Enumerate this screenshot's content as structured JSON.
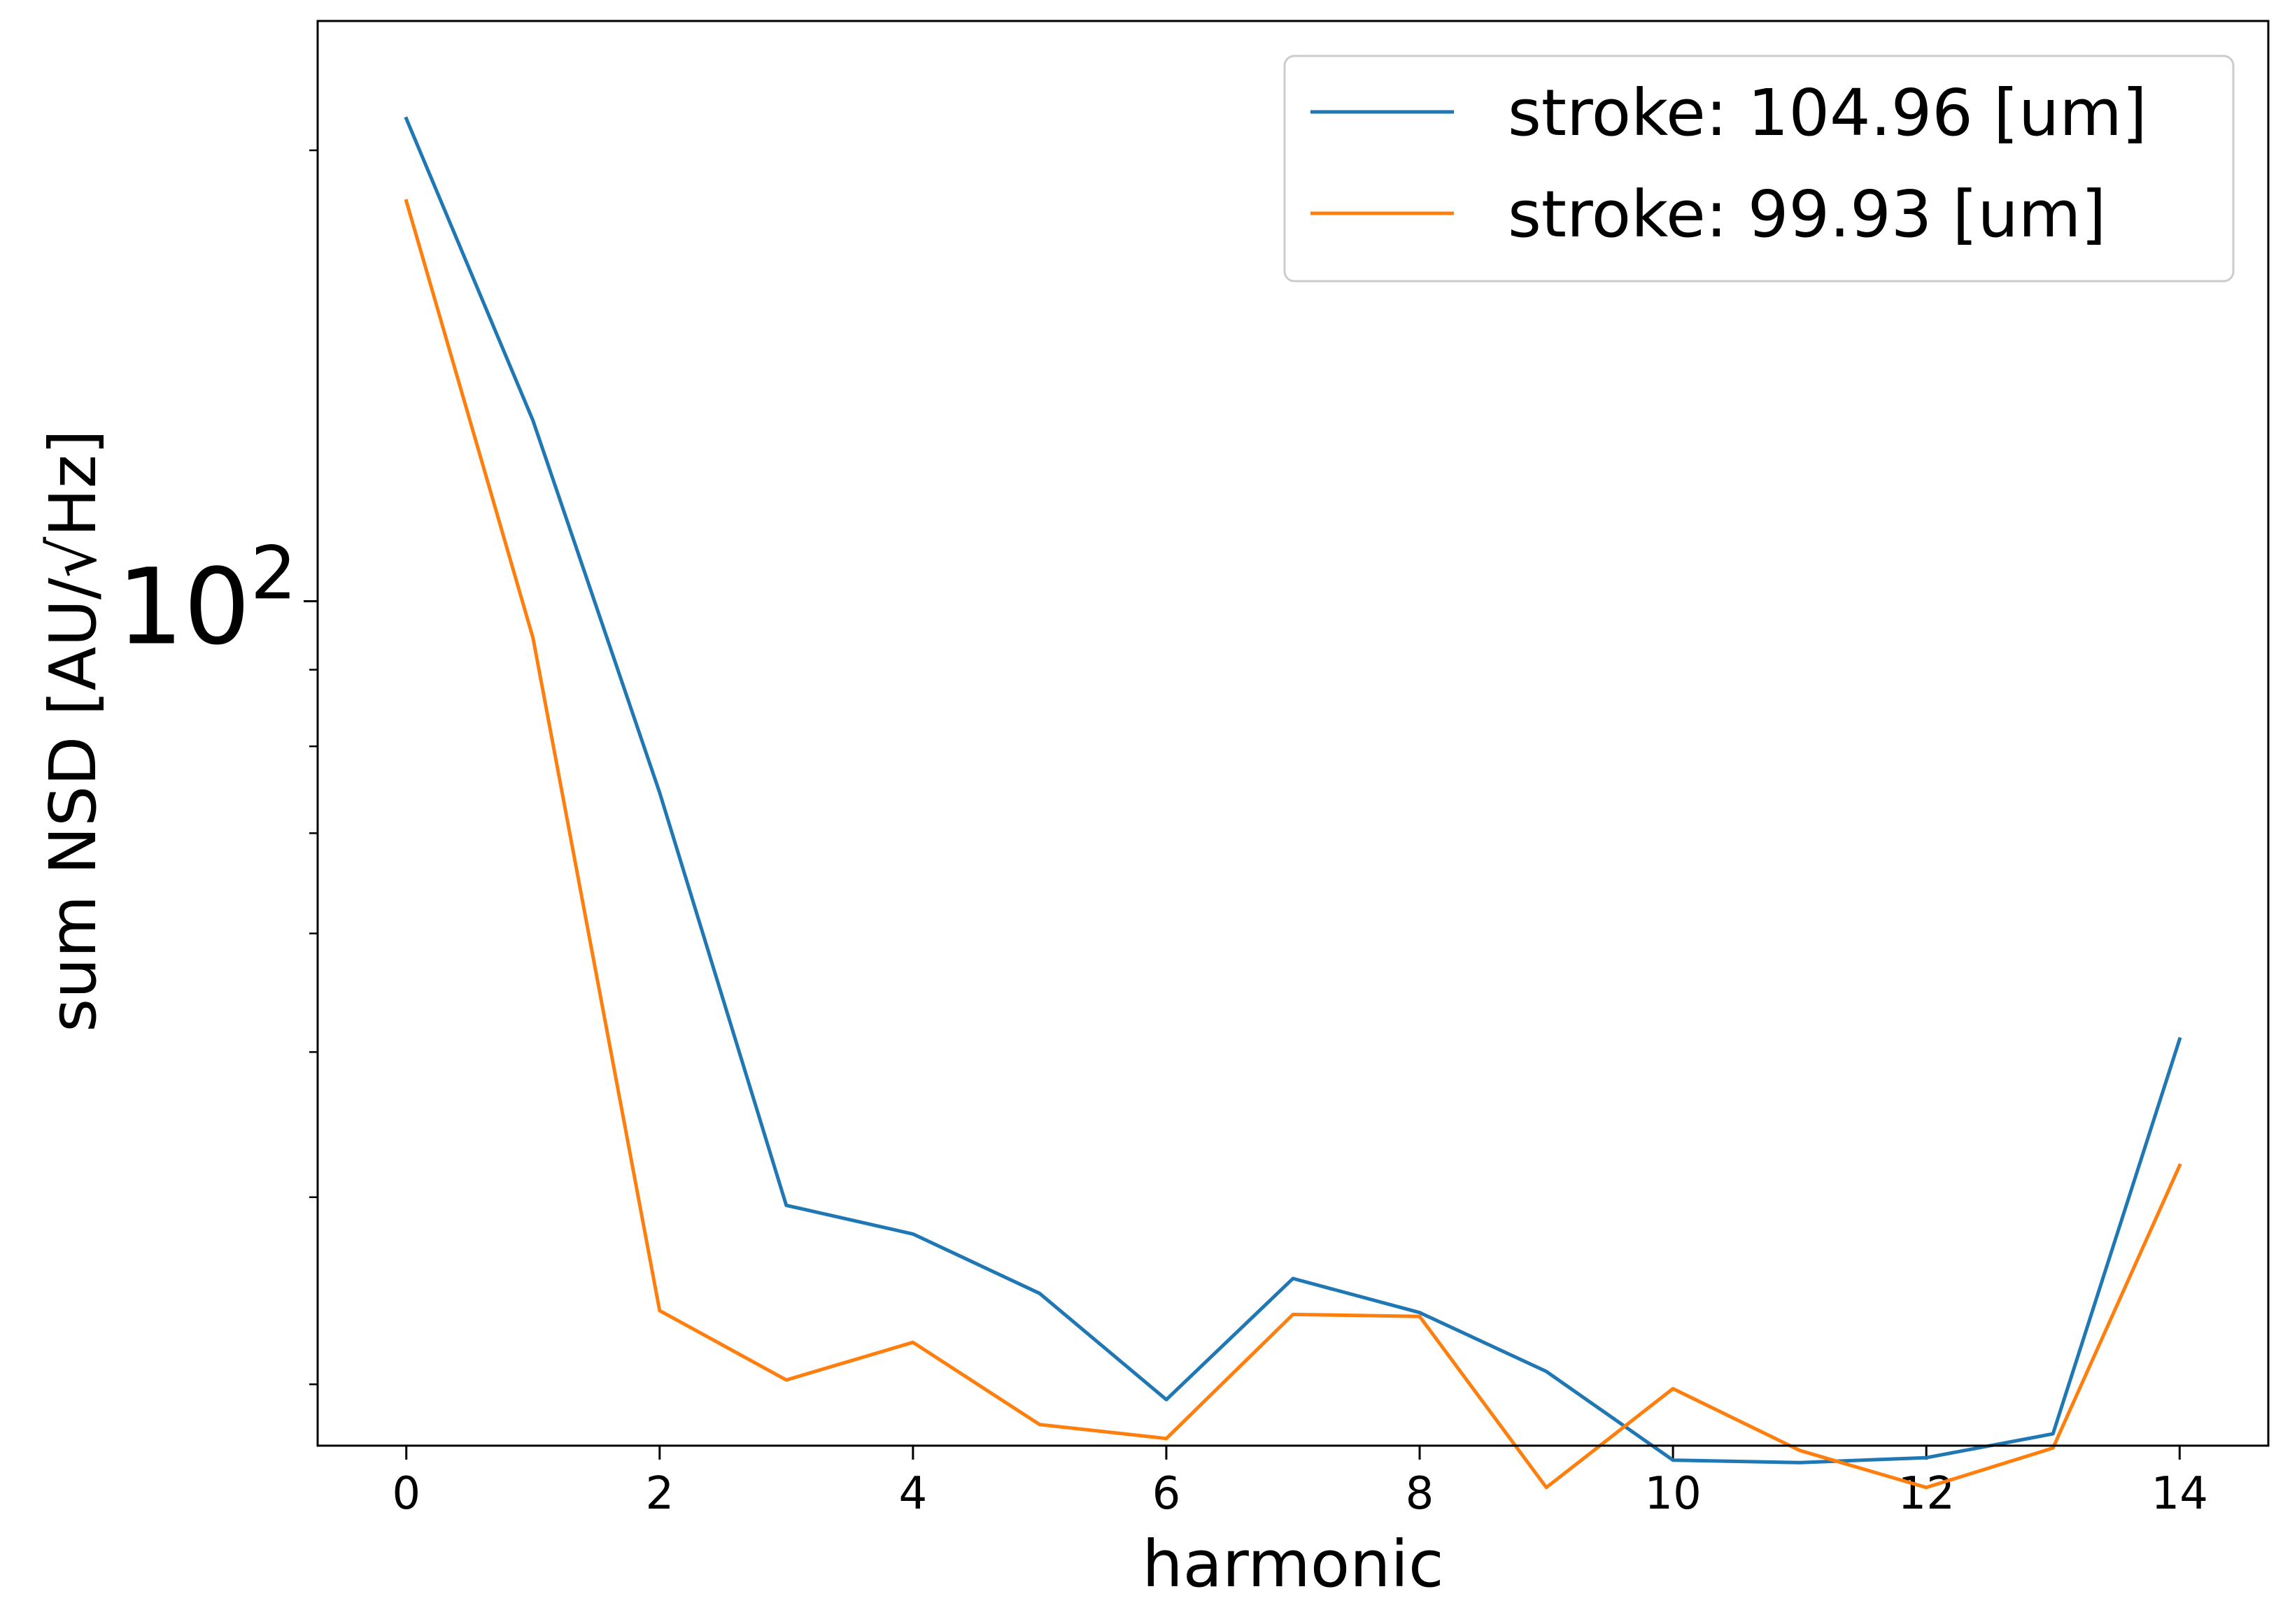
{
  "chart_data": {
    "type": "line",
    "title": "",
    "xlabel": "harmonic",
    "ylabel": "sum NSD [AU/√Hz]",
    "y_scale": "log",
    "y_tick_labels": [
      {
        "value": 100,
        "base": "10",
        "exponent": "2"
      }
    ],
    "x_ticks": [
      0,
      2,
      4,
      6,
      8,
      10,
      12,
      14
    ],
    "xlim": [
      -0.7,
      14.7
    ],
    "ylim": [
      27.3,
      244
    ],
    "grid": false,
    "legend_position": "upper right",
    "x": [
      0,
      1,
      2,
      3,
      4,
      5,
      6,
      7,
      8,
      9,
      10,
      11,
      12,
      13,
      14
    ],
    "series": [
      {
        "name": "stroke: 104.96 [um]",
        "color": "#1f77b4",
        "values": [
          210,
          132,
          74.5,
          39.5,
          37.8,
          34.5,
          29.3,
          35.3,
          33.5,
          30.6,
          26.7,
          26.6,
          26.8,
          27.8,
          51
        ]
      },
      {
        "name": "stroke: 99.93 [um]",
        "color": "#ff7f0e",
        "values": [
          185,
          94.5,
          33.6,
          30.2,
          32,
          28.2,
          27.6,
          33.4,
          33.3,
          25.6,
          29.8,
          27.1,
          25.6,
          27.2,
          42
        ]
      }
    ]
  }
}
